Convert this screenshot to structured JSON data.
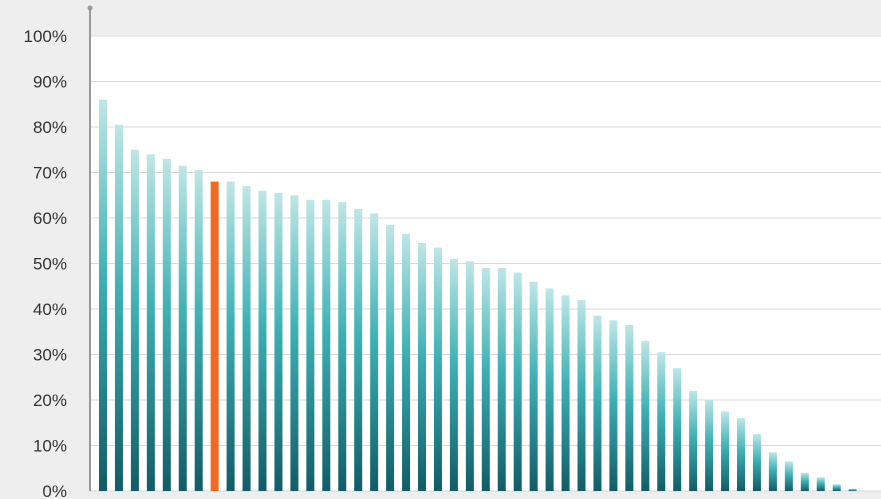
{
  "chart_data": {
    "type": "bar",
    "title": "",
    "xlabel": "",
    "ylabel": "",
    "ylim": [
      0,
      100
    ],
    "y_ticks": [
      "0%",
      "10%",
      "20%",
      "30%",
      "40%",
      "50%",
      "60%",
      "70%",
      "80%",
      "90%",
      "100%"
    ],
    "y_tick_values": [
      0,
      10,
      20,
      30,
      40,
      50,
      60,
      70,
      80,
      90,
      100
    ],
    "grid": true,
    "values": [
      86,
      80.5,
      75,
      74,
      73,
      71.5,
      70.5,
      68,
      68,
      67,
      66,
      65.5,
      65,
      64,
      64,
      63.5,
      62,
      61,
      58.5,
      56.5,
      54.5,
      53.5,
      51,
      50.5,
      49,
      49,
      48,
      46,
      44.5,
      43,
      42,
      38.5,
      37.5,
      36.5,
      33,
      30.5,
      27,
      22,
      20,
      17.5,
      16,
      12.5,
      8.5,
      6.5,
      4,
      3,
      1.5,
      0.5
    ],
    "highlight_index": 7,
    "colors": {
      "bar_top": "#bfe6e5",
      "bar_mid": "#3fb1b6",
      "bar_bottom": "#115c68",
      "highlight": "#f26a22",
      "plot_bg": "#ffffff",
      "page_bg": "#eeeeee",
      "grid": "#d9d9d9",
      "axis": "#999999"
    }
  }
}
